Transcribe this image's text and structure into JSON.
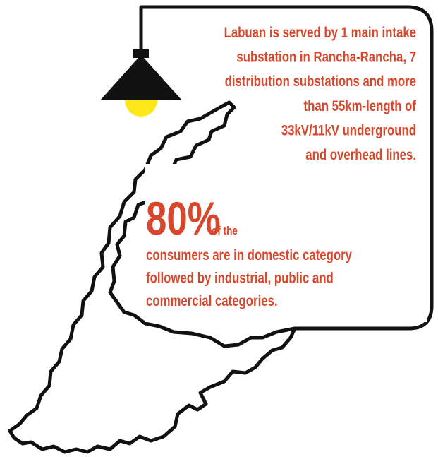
{
  "info": {
    "intro_lines": [
      "Labuan is served by 1 main intake",
      "substation in Rancha-Rancha, 7",
      "distribution substations and more",
      "than 55km-length of",
      "33kV/11kV underground",
      "and overhead lines."
    ],
    "stat": "80%",
    "stat_suffix": "of the",
    "detail_lines": [
      "consumers are in domestic category",
      "followed by industrial, public and",
      "commercial categories."
    ]
  }
}
